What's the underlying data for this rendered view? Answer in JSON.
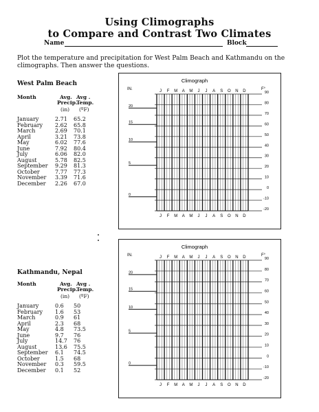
{
  "title_line1": "Using Climographs",
  "title_line2": "to Compare and Contrast Two Climates",
  "name_label": "Name",
  "block_label": "Block",
  "intro": "Plot the temperature and precipitation for West Palm Beach and Kathmandu on the climographs. Then answer the questions.",
  "table_headers": {
    "month": "Month",
    "precip_line1": "Avg.",
    "precip_line2": "Precip.",
    "precip_unit": "(in)",
    "temp_line1": "Avg .",
    "temp_line2": "Temp.",
    "temp_unit": "(ºF)"
  },
  "cities": [
    {
      "name": "West Palm Beach",
      "rows": [
        {
          "month": "January",
          "precip": "2.71",
          "temp": "65.2"
        },
        {
          "month": "February",
          "precip": "2.62",
          "temp": "65.8"
        },
        {
          "month": "March",
          "precip": "2.69",
          "temp": "70.1"
        },
        {
          "month": "April",
          "precip": "3.21",
          "temp": "73.8"
        },
        {
          "month": "May",
          "precip": "6.02",
          "temp": "77.6"
        },
        {
          "month": "June",
          "precip": "7.92",
          "temp": "80.4"
        },
        {
          "month": "July",
          "precip": "6.06",
          "temp": "82.0"
        },
        {
          "month": "August",
          "precip": "5.78",
          "temp": "82.5"
        },
        {
          "month": "September",
          "precip": "9.29",
          "temp": "81.3"
        },
        {
          "month": "October",
          "precip": "7.77",
          "temp": "77.3"
        },
        {
          "month": "November",
          "precip": "3.39",
          "temp": "71.6"
        },
        {
          "month": "December",
          "precip": "2.26",
          "temp": "67.0"
        }
      ]
    },
    {
      "name": "Kathmandu, Nepal",
      "rows": [
        {
          "month": "January",
          "precip": "0.6",
          "temp": "50"
        },
        {
          "month": "February",
          "precip": "1.6",
          "temp": "53"
        },
        {
          "month": "March",
          "precip": "0.9",
          "temp": "61"
        },
        {
          "month": "April",
          "precip": "2.3",
          "temp": "68"
        },
        {
          "month": "May",
          "precip": "4.8",
          "temp": "73.5"
        },
        {
          "month": "June",
          "precip": "9.7",
          "temp": "76"
        },
        {
          "month": "July",
          "precip": "14.7",
          "temp": "76"
        },
        {
          "month": "August",
          "precip": "13.6",
          "temp": "75.5"
        },
        {
          "month": "September",
          "precip": "6.1",
          "temp": "74.5"
        },
        {
          "month": "October",
          "precip": "1.5",
          "temp": "68"
        },
        {
          "month": "November",
          "precip": "0.3",
          "temp": "59.5"
        },
        {
          "month": "December",
          "precip": "0.1",
          "temp": "52"
        }
      ]
    }
  ],
  "climograph": {
    "title": "Climograph",
    "left_unit": "IN.",
    "right_unit": "F°",
    "months": [
      "J",
      "F",
      "M",
      "A",
      "M",
      "J",
      "J",
      "A",
      "S",
      "O",
      "N",
      "D"
    ],
    "left_ticks": [
      "20",
      "15",
      "10",
      "5",
      "0"
    ],
    "right_ticks": [
      "90",
      "80",
      "70",
      "60",
      "50",
      "40",
      "30",
      "20",
      "10",
      "0",
      "-10",
      "-20"
    ]
  }
}
